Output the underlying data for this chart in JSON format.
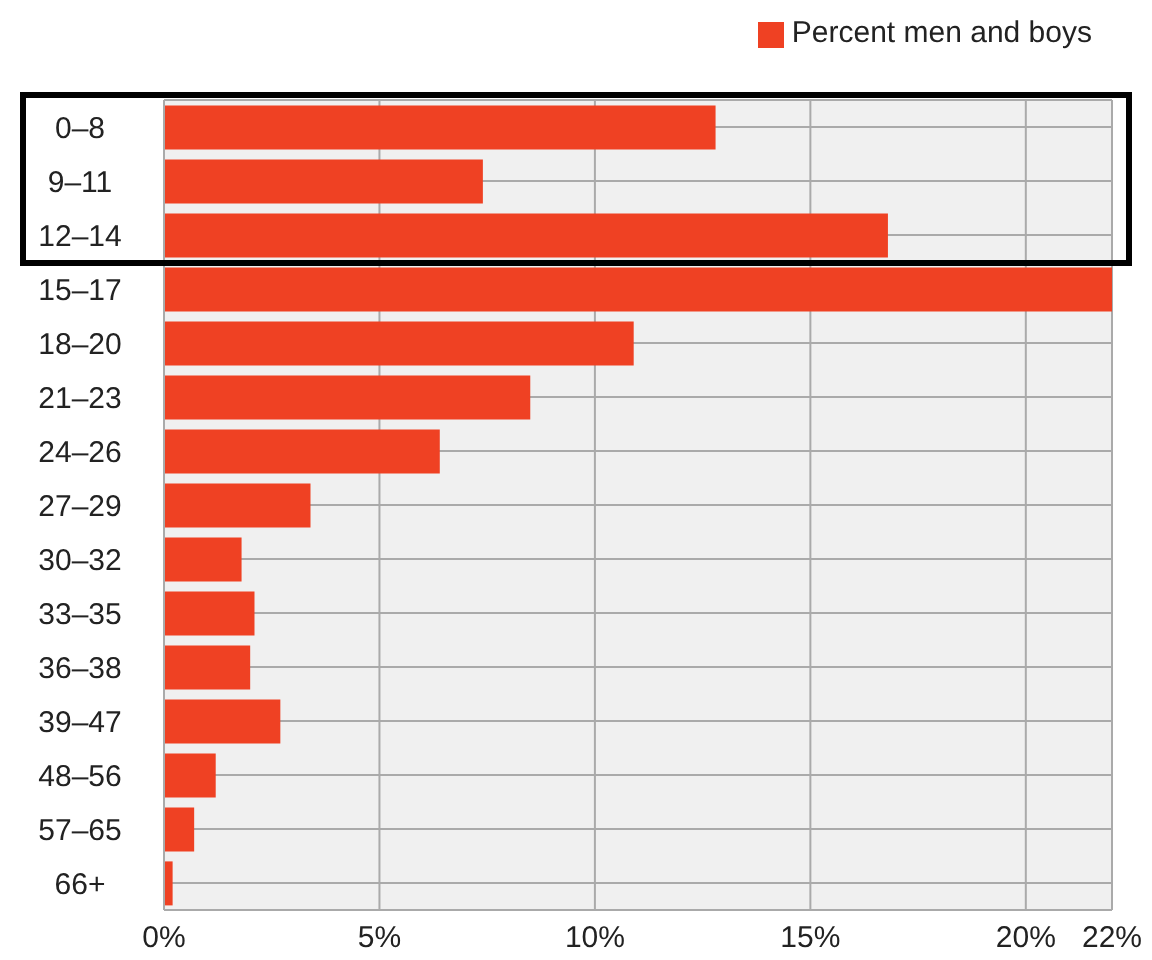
{
  "chart_data": {
    "type": "bar",
    "orientation": "horizontal",
    "categories": [
      "0–8",
      "9–11",
      "12–14",
      "15–17",
      "18–20",
      "21–23",
      "24–26",
      "27–29",
      "30–32",
      "33–35",
      "36–38",
      "39–47",
      "48–56",
      "57–65",
      "66+"
    ],
    "series": [
      {
        "name": "Percent men and boys",
        "color": "#ef4123",
        "values": [
          12.8,
          7.4,
          16.8,
          22,
          10.9,
          8.5,
          6.4,
          3.4,
          1.8,
          2.1,
          2.0,
          2.7,
          1.2,
          0.7,
          0.2
        ]
      }
    ],
    "xlim": [
      0,
      22
    ],
    "xticks": [
      {
        "value": 0,
        "label": "0%"
      },
      {
        "value": 5,
        "label": "5%"
      },
      {
        "value": 10,
        "label": "10%"
      },
      {
        "value": 15,
        "label": "15%"
      },
      {
        "value": 20,
        "label": "20%"
      },
      {
        "value": 22,
        "label": "22%"
      }
    ],
    "grid": true,
    "legend": "top right"
  }
}
